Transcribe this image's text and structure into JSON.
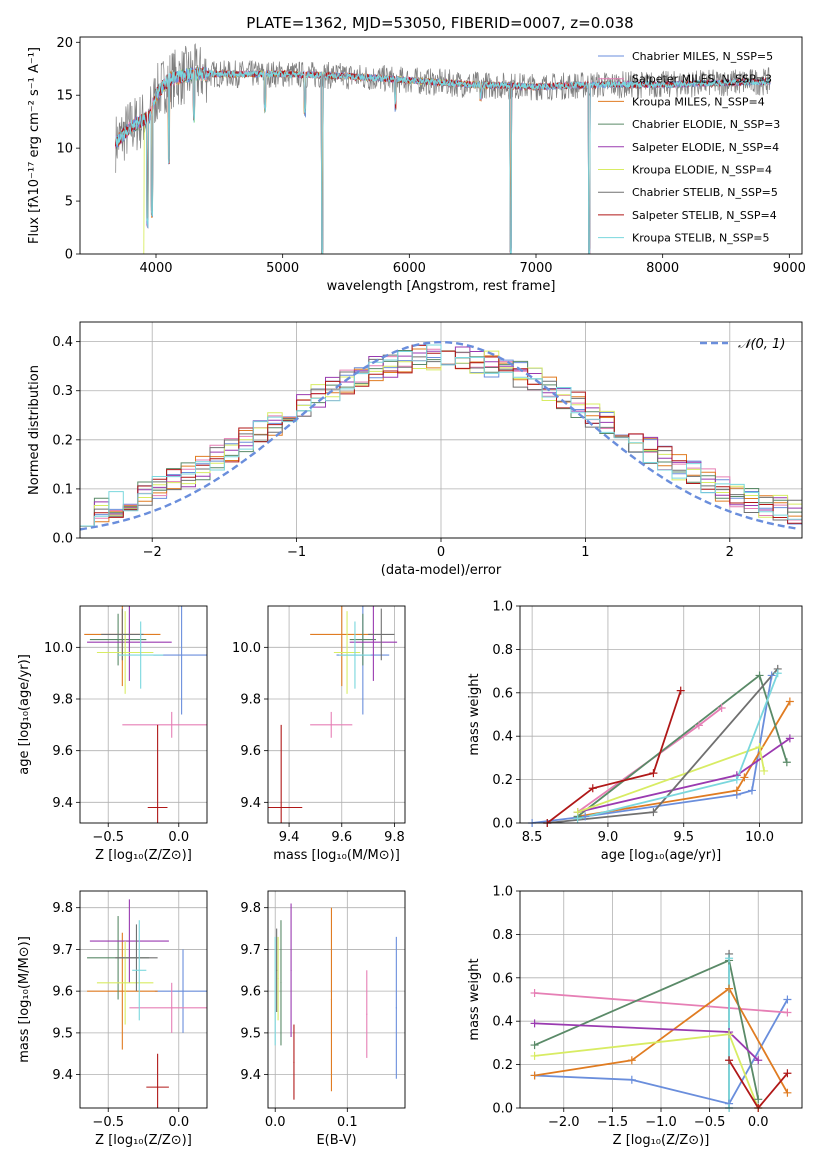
{
  "title": "PLATE=1362, MJD=53050, FIBERID=0007, z=0.038",
  "colors": {
    "Chabrier MILES": "#6a8edc",
    "Salpeter MILES": "#e67fb5",
    "Kroupa MILES": "#e07c22",
    "Chabrier ELODIE": "#5a8a68",
    "Salpeter ELODIE": "#9a3ab0",
    "Kroupa ELODIE": "#d8ec63",
    "Chabrier STELIB": "#707070",
    "Salpeter STELIB": "#b01818",
    "Kroupa STELIB": "#7ad7dd",
    "normal": "#6a8edc"
  },
  "chart_data": [
    {
      "id": "spectrum",
      "type": "line",
      "title": "PLATE=1362, MJD=53050, FIBERID=0007, z=0.038",
      "xlabel": "wavelength [Angstrom, rest frame]",
      "ylabel": "Flux [fλ10⁻¹⁷ erg cm⁻² s⁻¹ A⁻¹]",
      "xlim": [
        3400,
        9100
      ],
      "ylim": [
        0,
        20.5
      ],
      "xticks": [
        "4000",
        "5000",
        "6000",
        "7000",
        "8000",
        "9000"
      ],
      "yticks": [
        "0",
        "5",
        "10",
        "15",
        "20"
      ],
      "legend": [
        {
          "label": "Chabrier MILES, N_SSP=5",
          "key": "Chabrier MILES"
        },
        {
          "label": "Salpeter MILES, N_SSP=3",
          "key": "Salpeter MILES"
        },
        {
          "label": "Kroupa MILES, N_SSP=4",
          "key": "Kroupa MILES"
        },
        {
          "label": "Chabrier ELODIE, N_SSP=3",
          "key": "Chabrier ELODIE"
        },
        {
          "label": "Salpeter ELODIE, N_SSP=4",
          "key": "Salpeter ELODIE"
        },
        {
          "label": "Kroupa ELODIE, N_SSP=4",
          "key": "Kroupa ELODIE"
        },
        {
          "label": "Chabrier STELIB, N_SSP=5",
          "key": "Chabrier STELIB"
        },
        {
          "label": "Salpeter STELIB, N_SSP=4",
          "key": "Salpeter STELIB"
        },
        {
          "label": "Kroupa STELIB, N_SSP=5",
          "key": "Kroupa STELIB"
        }
      ],
      "legend_placement": "top-right",
      "continuum": [
        [
          3680,
          10.5
        ],
        [
          3800,
          12
        ],
        [
          3950,
          13
        ],
        [
          4000,
          15
        ],
        [
          4100,
          16.5
        ],
        [
          4300,
          17
        ],
        [
          4600,
          17
        ],
        [
          5000,
          17
        ],
        [
          5500,
          16.8
        ],
        [
          6000,
          16.4
        ],
        [
          6500,
          16
        ],
        [
          7000,
          15.8
        ],
        [
          7500,
          16
        ],
        [
          8000,
          16
        ],
        [
          8500,
          16.2
        ],
        [
          8850,
          16.3
        ]
      ],
      "features": [
        [
          3933,
          3
        ],
        [
          3968,
          4
        ],
        [
          4102,
          9
        ],
        [
          4300,
          13
        ],
        [
          4861,
          14
        ],
        [
          5175,
          13.5
        ],
        [
          5312,
          0
        ],
        [
          5890,
          14
        ],
        [
          6563,
          15
        ],
        [
          6800,
          0
        ],
        [
          7420,
          0
        ]
      ],
      "series_extent": {
        "Kroupa ELODIE": [
          3900,
          6800
        ],
        "Kroupa MILES": [
          3670,
          7420
        ],
        "Chabrier STELIB": [
          3650,
          8850
        ]
      }
    },
    {
      "id": "residuals",
      "type": "line",
      "xlabel": "(data-model)/error",
      "ylabel": "Normed distribution",
      "xlim": [
        -2.5,
        2.5
      ],
      "ylim": [
        0,
        0.44
      ],
      "xticks": [
        "−2",
        "−1",
        "0",
        "1",
        "2"
      ],
      "yticks": [
        "0.0",
        "0.1",
        "0.2",
        "0.3",
        "0.4"
      ],
      "grid": true,
      "legend": [
        "𝒩(0, 1)"
      ],
      "legend_placement": "top-right",
      "normal": {
        "mu": 0,
        "sigma": 1
      },
      "bin_width": 0.1
    },
    {
      "id": "age-Z",
      "type": "scatter",
      "xlabel": "Z [log₁₀(Z/Z⊙)]",
      "ylabel": "age  [log₁₀(age/yr)]",
      "xlim": [
        -0.7,
        0.2
      ],
      "ylim": [
        9.32,
        10.16
      ],
      "xticks": [
        "−0.5",
        "0.0"
      ],
      "yticks": [
        "9.4",
        "9.6",
        "9.8",
        "10.0"
      ],
      "grid": true,
      "points": [
        {
          "key": "Chabrier MILES",
          "x": 0.02,
          "y": 9.97,
          "xerr": 0.2,
          "yerr": 0.23
        },
        {
          "key": "Salpeter MILES",
          "x": -0.05,
          "y": 9.7,
          "xerr": 0.35,
          "yerr": 0.05
        },
        {
          "key": "Kroupa MILES",
          "x": -0.4,
          "y": 10.05,
          "xerr": 0.27,
          "yerr": 0.2
        },
        {
          "key": "Chabrier ELODIE",
          "x": -0.43,
          "y": 10.03,
          "xerr": 0.2,
          "yerr": 0.1
        },
        {
          "key": "Salpeter ELODIE",
          "x": -0.35,
          "y": 10.02,
          "xerr": 0.3,
          "yerr": 0.15
        },
        {
          "key": "Kroupa ELODIE",
          "x": -0.38,
          "y": 9.98,
          "xerr": 0.2,
          "yerr": 0.16
        },
        {
          "key": "Chabrier STELIB",
          "x": -0.4,
          "y": 10.05,
          "xerr": 0.15,
          "yerr": 0.1
        },
        {
          "key": "Salpeter STELIB",
          "x": -0.15,
          "y": 9.38,
          "xerr": 0.07,
          "yerr": 0.32
        },
        {
          "key": "Kroupa STELIB",
          "x": -0.27,
          "y": 9.97,
          "xerr": 0.16,
          "yerr": 0.13
        }
      ]
    },
    {
      "id": "age-mass",
      "type": "scatter",
      "xlabel": "mass [log₁₀(M/M⊙)]",
      "ylabel": "",
      "xlim": [
        9.32,
        9.84
      ],
      "ylim": [
        9.32,
        10.16
      ],
      "xticks": [
        "9.4",
        "9.6",
        "9.8"
      ],
      "yticks": [
        "9.4",
        "9.6",
        "9.8",
        "10.0"
      ],
      "grid": true,
      "points": [
        {
          "key": "Chabrier MILES",
          "x": 9.68,
          "y": 9.97,
          "xerr": 0.1,
          "yerr": 0.23
        },
        {
          "key": "Salpeter MILES",
          "x": 9.56,
          "y": 9.7,
          "xerr": 0.08,
          "yerr": 0.05
        },
        {
          "key": "Kroupa MILES",
          "x": 9.6,
          "y": 10.05,
          "xerr": 0.12,
          "yerr": 0.2
        },
        {
          "key": "Chabrier ELODIE",
          "x": 9.68,
          "y": 10.03,
          "xerr": 0.05,
          "yerr": 0.1
        },
        {
          "key": "Salpeter ELODIE",
          "x": 9.72,
          "y": 10.02,
          "xerr": 0.09,
          "yerr": 0.15
        },
        {
          "key": "Kroupa ELODIE",
          "x": 9.62,
          "y": 9.98,
          "xerr": 0.05,
          "yerr": 0.16
        },
        {
          "key": "Chabrier STELIB",
          "x": 9.75,
          "y": 10.05,
          "xerr": 0.05,
          "yerr": 0.1
        },
        {
          "key": "Salpeter STELIB",
          "x": 9.37,
          "y": 9.38,
          "xerr": 0.08,
          "yerr": 0.32
        },
        {
          "key": "Kroupa STELIB",
          "x": 9.65,
          "y": 9.97,
          "xerr": 0.06,
          "yerr": 0.13
        }
      ]
    },
    {
      "id": "weight-age",
      "type": "line",
      "xlabel": "age  [log₁₀(age/yr)]",
      "ylabel": "mass weight",
      "xlim": [
        8.42,
        10.28
      ],
      "ylim": [
        0,
        1.0
      ],
      "xticks": [
        "8.5",
        "9.0",
        "9.5",
        "10.0"
      ],
      "yticks": [
        "0.0",
        "0.2",
        "0.4",
        "0.6",
        "0.8",
        "1.0"
      ],
      "grid": true,
      "series": [
        {
          "key": "Chabrier MILES",
          "points": [
            [
              8.5,
              0.0
            ],
            [
              8.85,
              0.03
            ],
            [
              9.85,
              0.13
            ],
            [
              9.95,
              0.15
            ],
            [
              10.08,
              0.68
            ]
          ]
        },
        {
          "key": "Salpeter MILES",
          "points": [
            [
              8.8,
              0.05
            ],
            [
              9.6,
              0.45
            ],
            [
              9.75,
              0.53
            ]
          ]
        },
        {
          "key": "Kroupa MILES",
          "points": [
            [
              8.8,
              0.03
            ],
            [
              9.85,
              0.15
            ],
            [
              9.9,
              0.21
            ],
            [
              10.2,
              0.56
            ]
          ]
        },
        {
          "key": "Chabrier ELODIE",
          "points": [
            [
              8.8,
              0.03
            ],
            [
              10.0,
              0.68
            ],
            [
              10.18,
              0.28
            ]
          ]
        },
        {
          "key": "Salpeter ELODIE",
          "points": [
            [
              8.8,
              0.05
            ],
            [
              9.85,
              0.22
            ],
            [
              10.2,
              0.39
            ]
          ]
        },
        {
          "key": "Kroupa ELODIE",
          "points": [
            [
              8.8,
              0.05
            ],
            [
              10.0,
              0.35
            ],
            [
              10.03,
              0.24
            ]
          ]
        },
        {
          "key": "Chabrier STELIB",
          "points": [
            [
              8.6,
              0.0
            ],
            [
              9.3,
              0.05
            ],
            [
              10.12,
              0.71
            ]
          ]
        },
        {
          "key": "Salpeter STELIB",
          "points": [
            [
              8.6,
              0.0
            ],
            [
              8.9,
              0.16
            ],
            [
              9.3,
              0.23
            ],
            [
              9.48,
              0.61
            ]
          ]
        },
        {
          "key": "Kroupa STELIB",
          "points": [
            [
              8.8,
              0.02
            ],
            [
              9.85,
              0.2
            ],
            [
              10.12,
              0.69
            ]
          ]
        }
      ]
    },
    {
      "id": "mass-Z",
      "type": "scatter",
      "xlabel": "Z [log₁₀(Z/Z⊙)]",
      "ylabel": "mass [log₁₀(M/M⊙)]",
      "xlim": [
        -0.7,
        0.2
      ],
      "ylim": [
        9.32,
        9.84
      ],
      "xticks": [
        "−0.5",
        "0.0"
      ],
      "yticks": [
        "9.4",
        "9.5",
        "9.6",
        "9.7",
        "9.8"
      ],
      "grid": true,
      "points": [
        {
          "key": "Chabrier MILES",
          "x": 0.03,
          "y": 9.6,
          "xerr": 0.2,
          "yerr": 0.1
        },
        {
          "key": "Salpeter MILES",
          "x": -0.05,
          "y": 9.56,
          "xerr": 0.3,
          "yerr": 0.06
        },
        {
          "key": "Kroupa MILES",
          "x": -0.4,
          "y": 9.6,
          "xerr": 0.25,
          "yerr": 0.14
        },
        {
          "key": "Chabrier ELODIE",
          "x": -0.43,
          "y": 9.68,
          "xerr": 0.22,
          "yerr": 0.1
        },
        {
          "key": "Salpeter ELODIE",
          "x": -0.35,
          "y": 9.72,
          "xerr": 0.28,
          "yerr": 0.1
        },
        {
          "key": "Kroupa ELODIE",
          "x": -0.38,
          "y": 9.62,
          "xerr": 0.2,
          "yerr": 0.1
        },
        {
          "key": "Chabrier STELIB",
          "x": -0.3,
          "y": 9.68,
          "xerr": 0.15,
          "yerr": 0.08
        },
        {
          "key": "Salpeter STELIB",
          "x": -0.15,
          "y": 9.37,
          "xerr": 0.08,
          "yerr": 0.08
        },
        {
          "key": "Kroupa STELIB",
          "x": -0.28,
          "y": 9.65,
          "xerr": 0.05,
          "yerr": 0.12
        }
      ]
    },
    {
      "id": "mass-EBV",
      "type": "scatter",
      "xlabel": "E(B-V)",
      "ylabel": "",
      "xlim": [
        -0.01,
        0.18
      ],
      "ylim": [
        9.32,
        9.84
      ],
      "xticks": [
        "0.0",
        "0.1"
      ],
      "yticks": [
        "9.4",
        "9.5",
        "9.6",
        "9.7",
        "9.8"
      ],
      "grid": true,
      "points": [
        {
          "key": "Chabrier MILES",
          "x": 0.168,
          "y": 9.56,
          "yerr": 0.17
        },
        {
          "key": "Salpeter MILES",
          "x": 0.127,
          "y": 9.545,
          "yerr": 0.105
        },
        {
          "key": "Kroupa MILES",
          "x": 0.078,
          "y": 9.58,
          "yerr": 0.22
        },
        {
          "key": "Chabrier ELODIE",
          "x": 0.008,
          "y": 9.62,
          "yerr": 0.15
        },
        {
          "key": "Salpeter ELODIE",
          "x": 0.022,
          "y": 9.65,
          "yerr": 0.16
        },
        {
          "key": "Kroupa ELODIE",
          "x": 0.004,
          "y": 9.63,
          "yerr": 0.1
        },
        {
          "key": "Chabrier STELIB",
          "x": 0.002,
          "y": 9.65,
          "yerr": 0.1
        },
        {
          "key": "Salpeter STELIB",
          "x": 0.026,
          "y": 9.43,
          "yerr": 0.09
        },
        {
          "key": "Kroupa STELIB",
          "x": 0.0,
          "y": 9.6,
          "yerr": 0.13
        }
      ]
    },
    {
      "id": "weight-Z",
      "type": "line",
      "xlabel": "Z [log₁₀(Z/Z⊙)]",
      "ylabel": "mass weight",
      "xlim": [
        -2.45,
        0.45
      ],
      "ylim": [
        0,
        1.0
      ],
      "xticks": [
        "−2.0",
        "−1.5",
        "−1.0",
        "−0.5",
        "0.0"
      ],
      "yticks": [
        "0.0",
        "0.2",
        "0.4",
        "0.6",
        "0.8",
        "1.0"
      ],
      "grid": true,
      "series": [
        {
          "key": "Chabrier MILES",
          "points": [
            [
              -2.3,
              0.15
            ],
            [
              -1.3,
              0.13
            ],
            [
              -0.3,
              0.02
            ],
            [
              0.3,
              0.5
            ]
          ]
        },
        {
          "key": "Salpeter MILES",
          "points": [
            [
              -2.3,
              0.53
            ],
            [
              0.3,
              0.44
            ]
          ]
        },
        {
          "key": "Kroupa MILES",
          "points": [
            [
              -2.3,
              0.15
            ],
            [
              -1.3,
              0.22
            ],
            [
              -0.3,
              0.55
            ],
            [
              0.3,
              0.07
            ]
          ]
        },
        {
          "key": "Chabrier ELODIE",
          "points": [
            [
              -2.3,
              0.29
            ],
            [
              -0.3,
              0.68
            ],
            [
              0.0,
              0.04
            ]
          ]
        },
        {
          "key": "Salpeter ELODIE",
          "points": [
            [
              -2.3,
              0.39
            ],
            [
              -0.3,
              0.35
            ],
            [
              0.0,
              0.22
            ]
          ]
        },
        {
          "key": "Kroupa ELODIE",
          "points": [
            [
              -2.3,
              0.24
            ],
            [
              -0.3,
              0.34
            ],
            [
              0.0,
              0.0
            ]
          ]
        },
        {
          "key": "Chabrier STELIB",
          "points": [
            [
              -0.3,
              0.71
            ],
            [
              -0.3,
              0.0
            ]
          ]
        },
        {
          "key": "Salpeter STELIB",
          "points": [
            [
              -0.3,
              0.22
            ],
            [
              0.0,
              0.0
            ],
            [
              0.3,
              0.16
            ]
          ]
        },
        {
          "key": "Kroupa STELIB",
          "points": [
            [
              -0.3,
              0.69
            ],
            [
              -0.3,
              0.0
            ]
          ]
        }
      ]
    }
  ]
}
